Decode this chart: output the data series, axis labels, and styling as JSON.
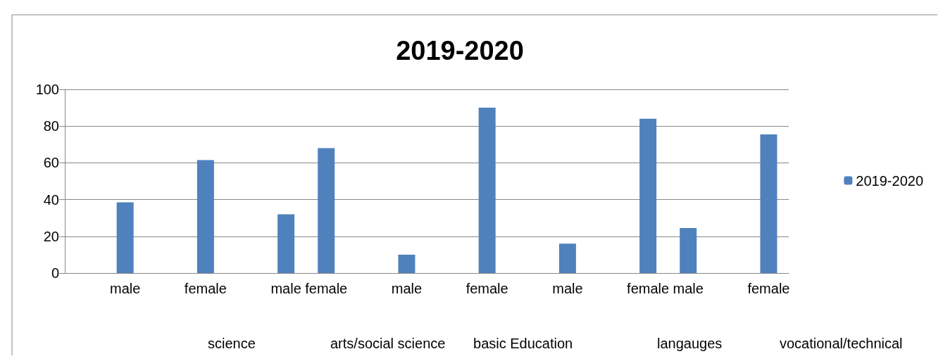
{
  "chart_data": {
    "type": "bar",
    "title": "2019-2020",
    "categories": [
      null,
      "male",
      null,
      "female",
      null,
      "male",
      "female",
      null,
      "male",
      null,
      "female",
      null,
      "male",
      null,
      "female",
      "male",
      null,
      "female"
    ],
    "series": [
      {
        "name": "2019-2020",
        "color": "#4f81bd",
        "values": [
          null,
          38.5,
          null,
          61.5,
          null,
          32,
          68,
          null,
          10,
          null,
          90,
          null,
          16,
          null,
          84,
          24.5,
          null,
          75.5
        ]
      }
    ],
    "ylim": [
      0,
      100
    ],
    "yticks": [
      0,
      20,
      40,
      60,
      80,
      100
    ],
    "grid": "y",
    "legend": "right",
    "annotations": [
      "science",
      "arts/social science",
      "basic Education",
      "langauges",
      "vocational/technical"
    ]
  }
}
